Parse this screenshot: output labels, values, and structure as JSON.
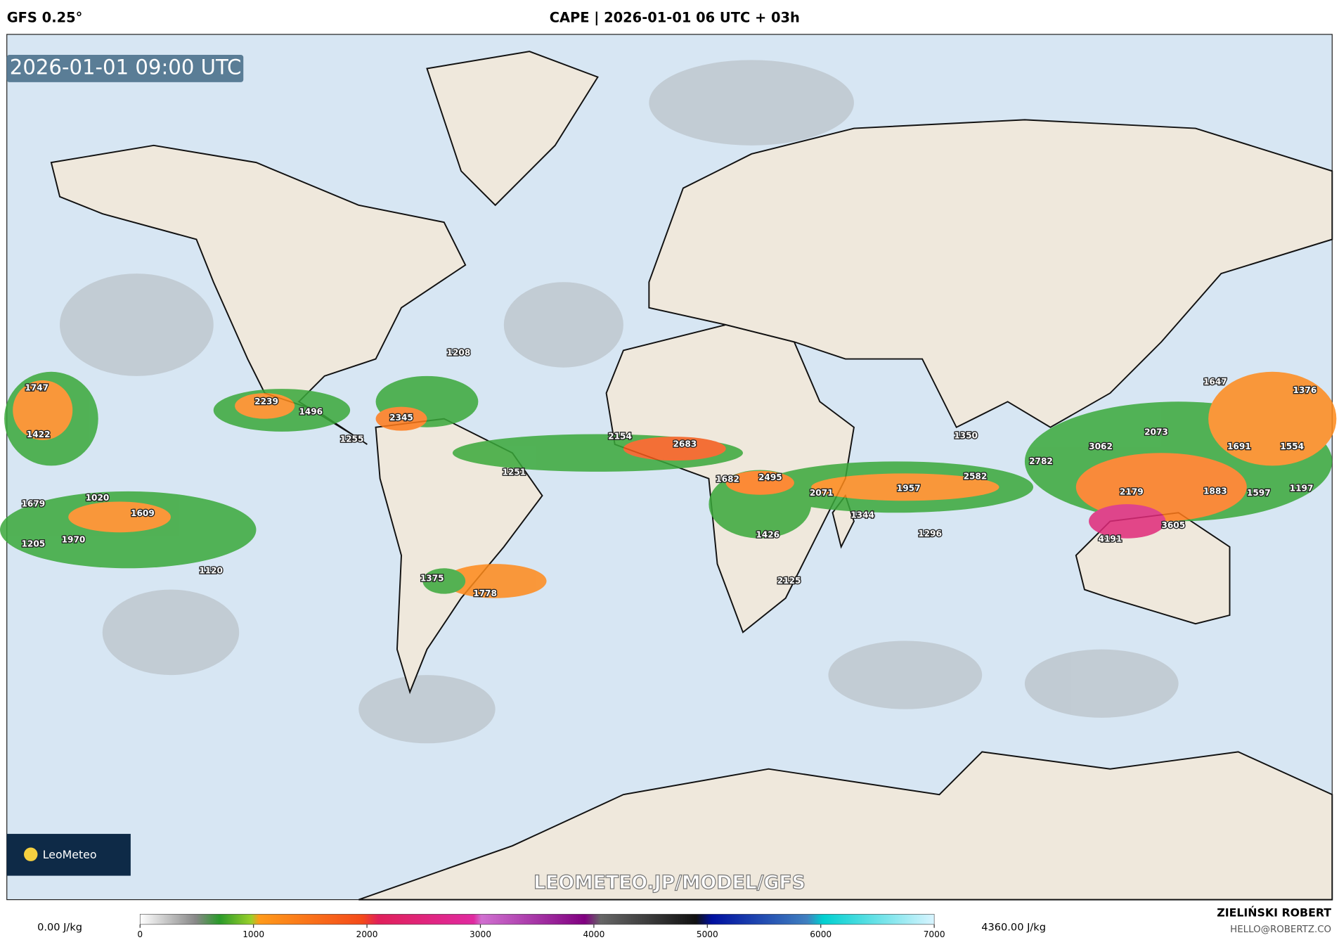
{
  "header": {
    "model": "GFS 0.25°",
    "title": "CAPE | 2026-01-01 06 UTC + 03h"
  },
  "timestamp": "2026-01-01 09:00 UTC",
  "logo": "LeoMeteo",
  "watermark": "LEOMETEO.JP/MODEL/GFS",
  "colorbar": {
    "ticks": [
      0,
      1000,
      2000,
      3000,
      4000,
      5000,
      6000,
      7000
    ],
    "min_label": "0.00 J/kg",
    "max_label": "4360.00 J/kg"
  },
  "author": {
    "name": "ZIELIŃSKI ROBERT",
    "email": "HELLO@ROBERTZ.CO"
  },
  "labels": [
    1747,
    2239,
    1496,
    1208,
    2345,
    1255,
    1422,
    2154,
    2683,
    1251,
    1682,
    2495,
    2071,
    1957,
    2582,
    1350,
    2782,
    3062,
    2073,
    1647,
    1376,
    1691,
    1554,
    1883,
    1597,
    1197,
    2179,
    3605,
    4191,
    1344,
    1296,
    1426,
    2125,
    1679,
    1020,
    1609,
    1205,
    1970,
    1120,
    1375,
    1778
  ]
}
